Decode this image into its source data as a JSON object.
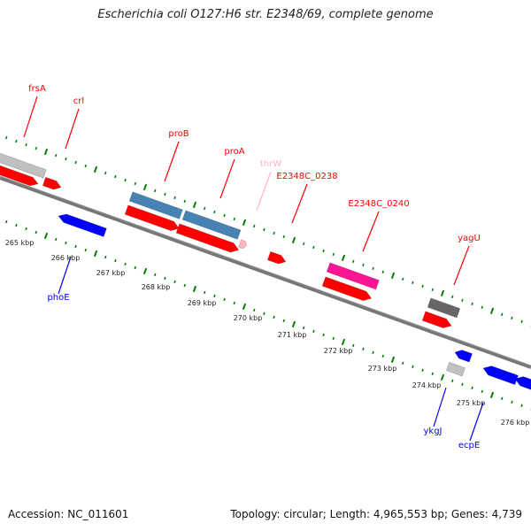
{
  "title": "Escherichia coli O127:H6 str. E2348/69, complete genome",
  "footer": {
    "accession": "Accession: NC_011601",
    "stats": "Topology: circular; Length: 4,965,553 bp; Genes: 4,739"
  },
  "colors": {
    "forward_gene": "#ff0000",
    "reverse_gene": "#0000ff",
    "blue_gene": "#4682b4",
    "pink_gene": "#ff1493",
    "light_pink_gene": "#ffb6c1",
    "gray_gene": "#666666",
    "light_gray_gene": "#c0c0c0",
    "backbone": "#777777",
    "tick": "#008000"
  },
  "gene_labels": [
    {
      "name": "frsA",
      "strand": "forward"
    },
    {
      "name": "crl",
      "strand": "forward"
    },
    {
      "name": "proB",
      "strand": "forward"
    },
    {
      "name": "proA",
      "strand": "forward"
    },
    {
      "name": "thrW",
      "strand": "forward"
    },
    {
      "name": "E2348C_0238",
      "strand": "forward"
    },
    {
      "name": "E2348C_0240",
      "strand": "forward"
    },
    {
      "name": "yagU",
      "strand": "forward"
    },
    {
      "name": "phoE",
      "strand": "reverse"
    },
    {
      "name": "ykgJ",
      "strand": "reverse"
    },
    {
      "name": "ecpE",
      "strand": "reverse"
    }
  ],
  "scale_labels": [
    "265 kbp",
    "266 kbp",
    "267 kbp",
    "268 kbp",
    "269 kbp",
    "270 kbp",
    "271 kbp",
    "272 kbp",
    "273 kbp",
    "274 kbp",
    "275 kbp",
    "276 kbp"
  ]
}
